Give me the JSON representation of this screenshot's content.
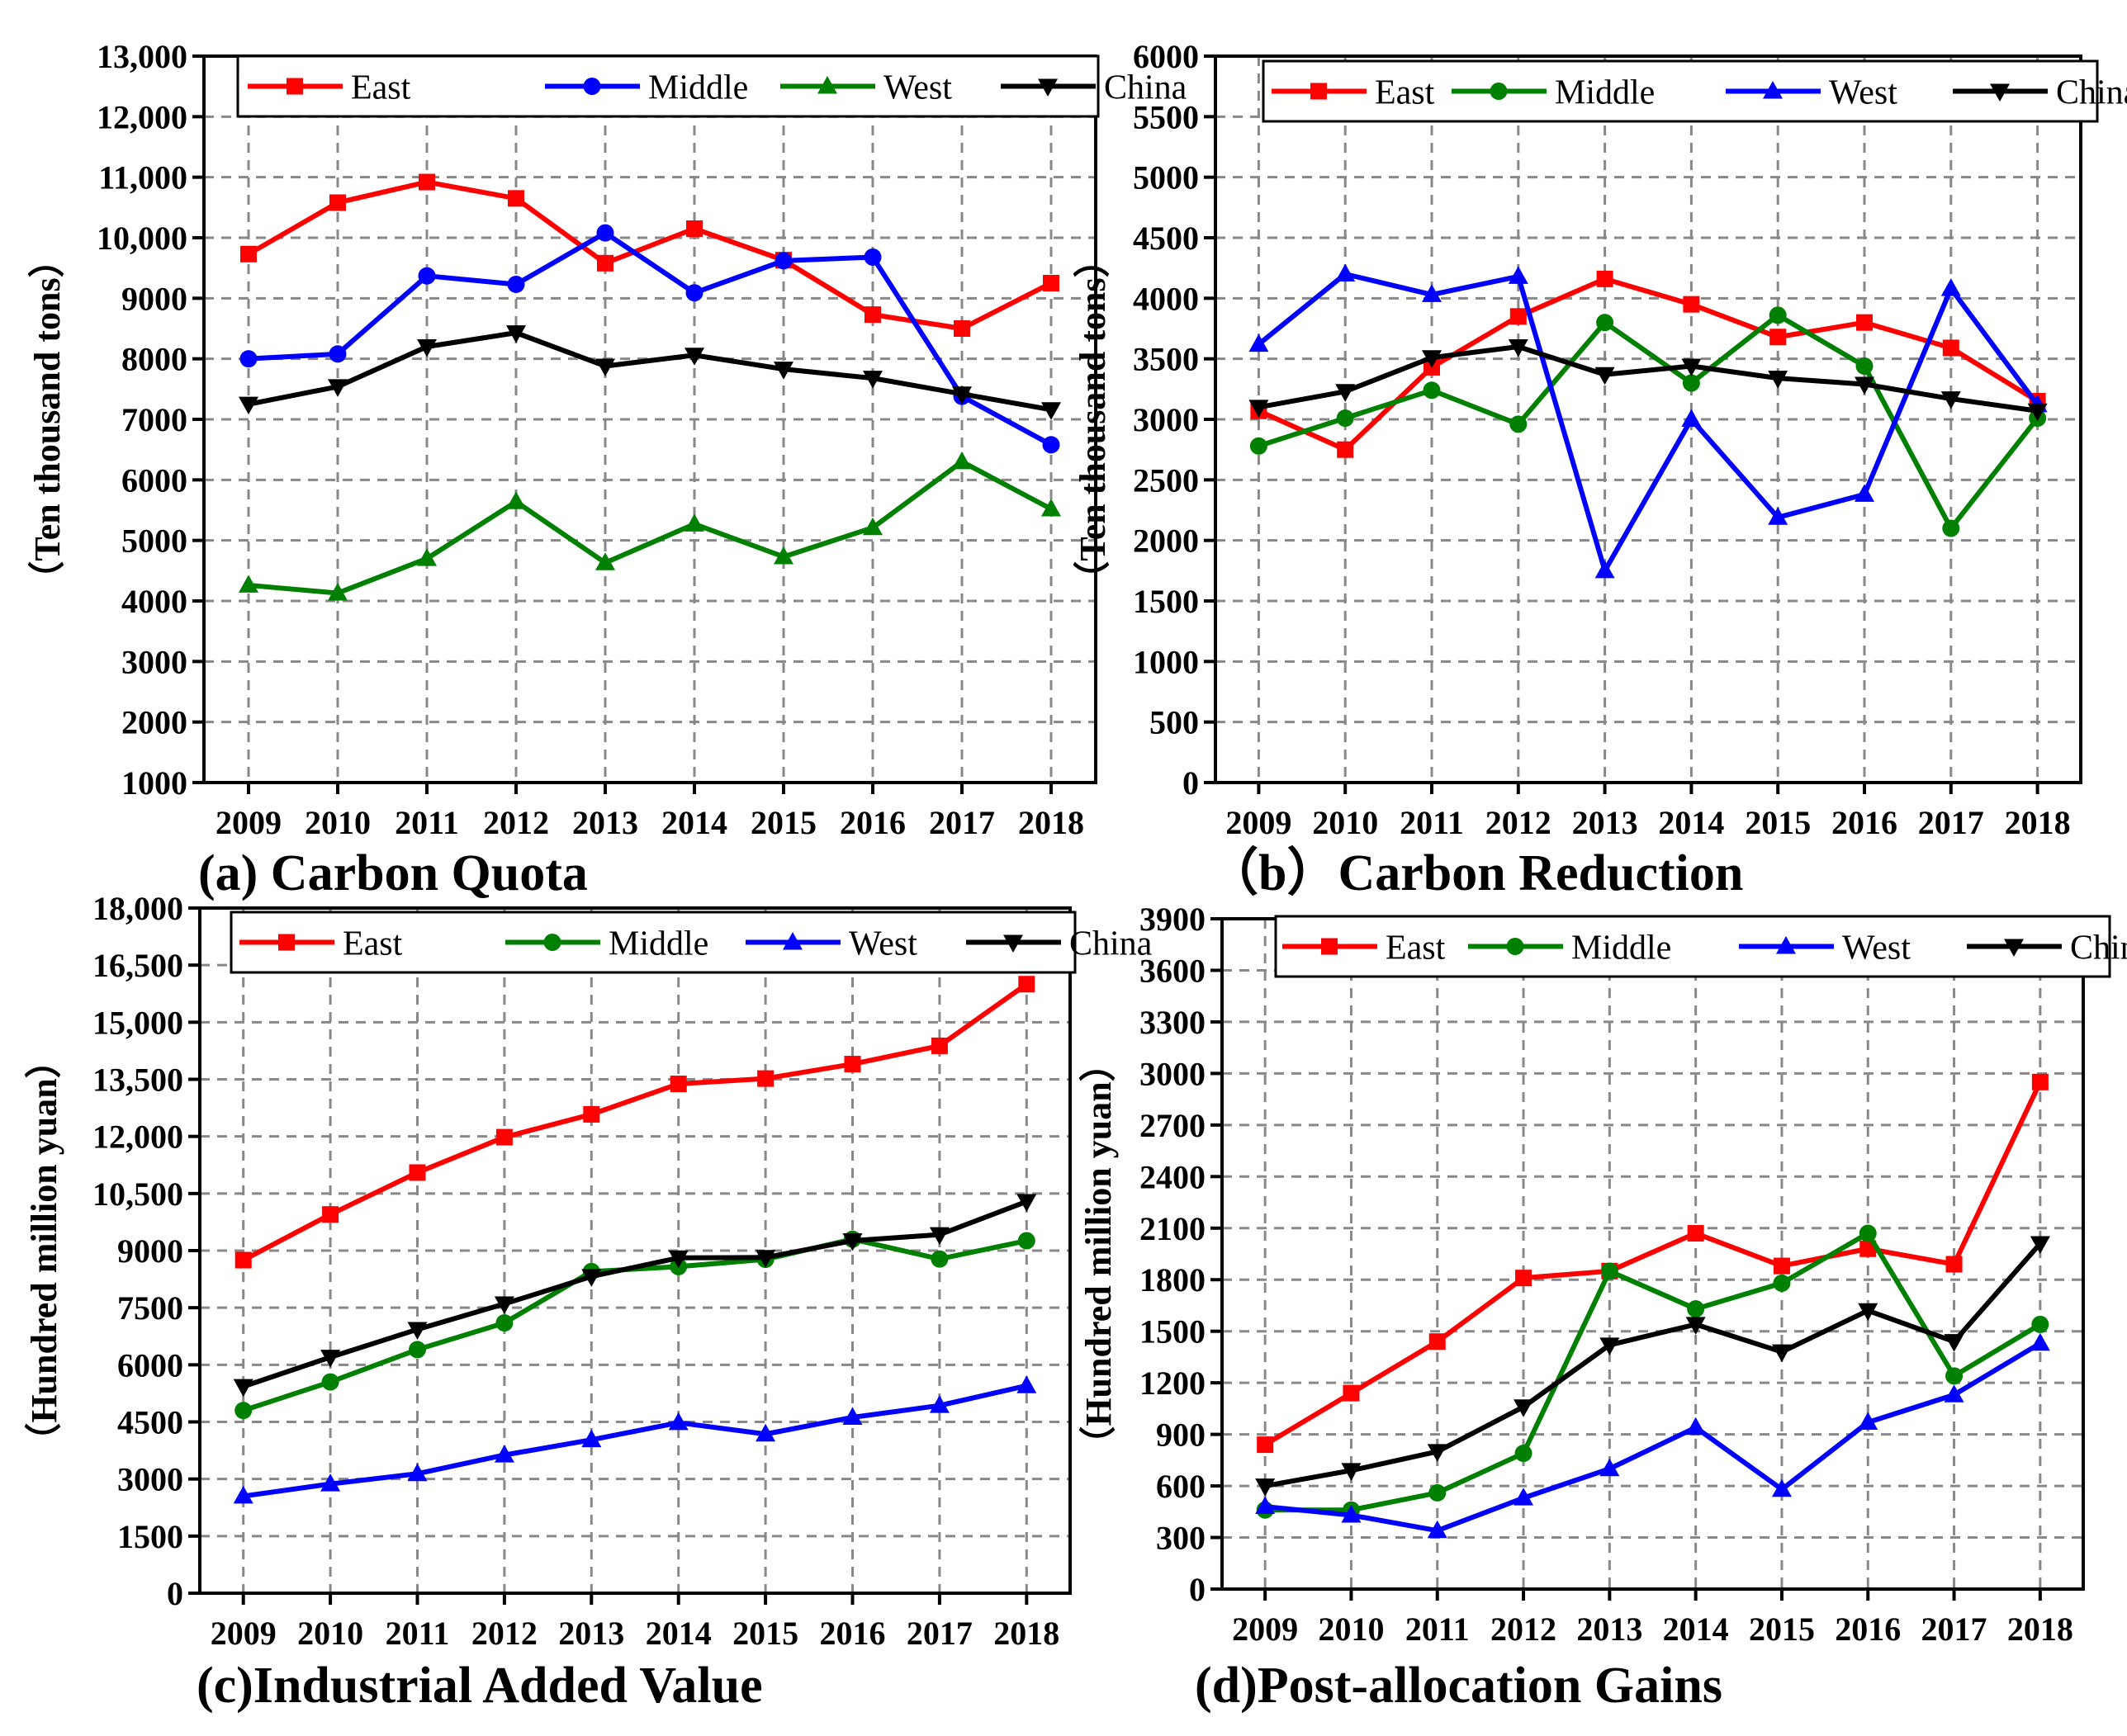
{
  "chart_data": [
    {
      "id": "a",
      "type": "line",
      "caption": "(a) Carbon Quota",
      "title": "",
      "xlabel": "",
      "ylabel": "（Ten thousand tons）",
      "categories": [
        "2009",
        "2010",
        "2011",
        "2012",
        "2013",
        "2014",
        "2015",
        "2016",
        "2017",
        "2018"
      ],
      "ylim": [
        1000,
        13000
      ],
      "yticks": [
        1000,
        2000,
        3000,
        4000,
        5000,
        6000,
        7000,
        8000,
        9000,
        10000,
        11000,
        12000,
        13000
      ],
      "ytick_labels": [
        "1000",
        "2000",
        "3000",
        "4000",
        "5000",
        "6000",
        "7000",
        "8000",
        "9000",
        "10,000",
        "11,000",
        "12,000",
        "13,000"
      ],
      "grid": true,
      "legend_position": "top",
      "series": [
        {
          "name": "East",
          "color": "#ff0000",
          "marker": "square",
          "values": [
            9730,
            10580,
            10920,
            10650,
            9580,
            10150,
            9630,
            8730,
            8500,
            9250
          ]
        },
        {
          "name": "Middle",
          "color": "#0000ff",
          "marker": "circle",
          "values": [
            8000,
            8080,
            9370,
            9230,
            10080,
            9090,
            9620,
            9680,
            7380,
            6580
          ]
        },
        {
          "name": "West",
          "color": "#008000",
          "marker": "triangle-up",
          "values": [
            4260,
            4130,
            4700,
            5640,
            4630,
            5270,
            4730,
            5210,
            6300,
            5520
          ]
        },
        {
          "name": "China",
          "color": "#000000",
          "marker": "triangle-down",
          "values": [
            7250,
            7540,
            8200,
            8430,
            7880,
            8060,
            7830,
            7680,
            7420,
            7160
          ]
        }
      ]
    },
    {
      "id": "b",
      "type": "line",
      "caption": "（b）Carbon Reduction",
      "title": "",
      "xlabel": "",
      "ylabel": "（Ten thousand tons）",
      "categories": [
        "2009",
        "2010",
        "2011",
        "2012",
        "2013",
        "2014",
        "2015",
        "2016",
        "2017",
        "2018"
      ],
      "ylim": [
        0,
        6000
      ],
      "yticks": [
        0,
        500,
        1000,
        1500,
        2000,
        2500,
        3000,
        3500,
        4000,
        4500,
        5000,
        5500,
        6000
      ],
      "ytick_labels": [
        "0",
        "500",
        "1000",
        "1500",
        "2000",
        "2500",
        "3000",
        "3500",
        "4000",
        "4500",
        "5000",
        "5500",
        "6000"
      ],
      "grid": true,
      "legend_position": "top",
      "series": [
        {
          "name": "East",
          "color": "#ff0000",
          "marker": "square",
          "values": [
            3070,
            2750,
            3430,
            3850,
            4160,
            3950,
            3680,
            3800,
            3590,
            3150
          ]
        },
        {
          "name": "Middle",
          "color": "#008000",
          "marker": "circle",
          "values": [
            2780,
            3010,
            3240,
            2960,
            3800,
            3300,
            3860,
            3440,
            2100,
            3010
          ]
        },
        {
          "name": "West",
          "color": "#0000ff",
          "marker": "triangle-up",
          "values": [
            3620,
            4200,
            4030,
            4180,
            1750,
            3000,
            2190,
            2380,
            4080,
            3120
          ]
        },
        {
          "name": "China",
          "color": "#000000",
          "marker": "triangle-down",
          "values": [
            3100,
            3230,
            3510,
            3600,
            3370,
            3440,
            3340,
            3290,
            3170,
            3070
          ]
        }
      ]
    },
    {
      "id": "c",
      "type": "line",
      "caption": "(c)Industrial Added Value",
      "title": "",
      "xlabel": "",
      "ylabel": "（Hundred million yuan）",
      "categories": [
        "2009",
        "2010",
        "2011",
        "2012",
        "2013",
        "2014",
        "2015",
        "2016",
        "2017",
        "2018"
      ],
      "ylim": [
        0,
        18000
      ],
      "yticks": [
        0,
        1500,
        3000,
        4500,
        6000,
        7500,
        9000,
        10500,
        12000,
        13500,
        15000,
        16500,
        18000
      ],
      "ytick_labels": [
        "0",
        "1500",
        "3000",
        "4500",
        "6000",
        "7500",
        "9000",
        "10,500",
        "12,000",
        "13,500",
        "15,000",
        "16,500",
        "18,000"
      ],
      "grid": true,
      "legend_position": "top",
      "series": [
        {
          "name": "East",
          "color": "#ff0000",
          "marker": "square",
          "values": [
            8750,
            9950,
            11050,
            11980,
            12580,
            13380,
            13520,
            13900,
            14380,
            16000
          ]
        },
        {
          "name": "Middle",
          "color": "#008000",
          "marker": "circle",
          "values": [
            4800,
            5550,
            6400,
            7100,
            8450,
            8580,
            8770,
            9300,
            8780,
            9260
          ]
        },
        {
          "name": "West",
          "color": "#0000ff",
          "marker": "triangle-up",
          "values": [
            2550,
            2870,
            3140,
            3630,
            4030,
            4480,
            4180,
            4620,
            4930,
            5450
          ]
        },
        {
          "name": "China",
          "color": "#000000",
          "marker": "triangle-down",
          "values": [
            5430,
            6200,
            6930,
            7600,
            8320,
            8810,
            8820,
            9260,
            9420,
            10290
          ]
        }
      ]
    },
    {
      "id": "d",
      "type": "line",
      "caption": "(d)Post-allocation Gains",
      "title": "",
      "xlabel": "",
      "ylabel": "（Hundred million yuan）",
      "categories": [
        "2009",
        "2010",
        "2011",
        "2012",
        "2013",
        "2014",
        "2015",
        "2016",
        "2017",
        "2018"
      ],
      "ylim": [
        0,
        3900
      ],
      "yticks": [
        0,
        300,
        600,
        900,
        1200,
        1500,
        1800,
        2100,
        2400,
        2700,
        3000,
        3300,
        3600,
        3900
      ],
      "ytick_labels": [
        "0",
        "300",
        "600",
        "900",
        "1200",
        "1500",
        "1800",
        "2100",
        "2400",
        "2700",
        "3000",
        "3300",
        "3600",
        "3900"
      ],
      "grid": true,
      "legend_position": "top",
      "series": [
        {
          "name": "East",
          "color": "#ff0000",
          "marker": "square",
          "values": [
            840,
            1140,
            1440,
            1810,
            1850,
            2070,
            1880,
            1980,
            1890,
            2950
          ]
        },
        {
          "name": "Middle",
          "color": "#008000",
          "marker": "circle",
          "values": [
            460,
            460,
            560,
            790,
            1850,
            1630,
            1780,
            2070,
            1240,
            1540
          ]
        },
        {
          "name": "West",
          "color": "#0000ff",
          "marker": "triangle-up",
          "values": [
            480,
            430,
            340,
            530,
            700,
            940,
            580,
            970,
            1130,
            1430
          ]
        },
        {
          "name": "China",
          "color": "#000000",
          "marker": "triangle-down",
          "values": [
            600,
            690,
            800,
            1060,
            1420,
            1540,
            1380,
            1620,
            1440,
            2010
          ]
        }
      ]
    }
  ]
}
